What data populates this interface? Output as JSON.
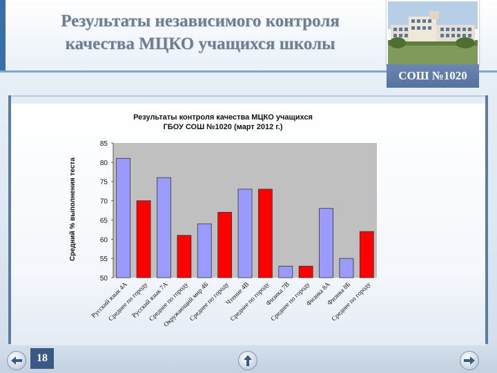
{
  "slide": {
    "title_line1": "Результаты независимого контроля",
    "title_line2": "качества МЦКО учащихся школы",
    "school_badge": "СОШ №1020",
    "page_number": "18"
  },
  "colors": {
    "school_bar": "#9a9aff",
    "city_bar": "#ff0000",
    "plot_bg": "#c0c0c0",
    "accent": "#3a6ea8"
  },
  "icons": {
    "prev": "arrow-left-icon",
    "home": "arrow-up-icon",
    "next": "arrow-right-icon"
  },
  "chart_data": {
    "type": "bar",
    "title": "Результаты контроля качества МЦКО учащихся ГБОУ СОШ №1020 (март 2012 г.)",
    "title_lines": [
      "Результаты контроля качества МЦКО учащихся",
      "ГБОУ СОШ №1020 (март 2012 г.)"
    ],
    "xlabel": "",
    "ylabel": "Средний % выполнения теста",
    "ylim": [
      50,
      85
    ],
    "yticks": [
      50,
      55,
      60,
      65,
      70,
      75,
      80,
      85
    ],
    "grid": false,
    "legend": "none",
    "categories": [
      "Русский язык 4А",
      "Среднее по городу",
      "Русский язык 7А",
      "Среднее по городу",
      "Окружающий мир 4Б",
      "Среднее по городу",
      "Чтение 4В",
      "Среднее по городу",
      "Физика 7В",
      "Среднее по городу",
      "Физика 8А",
      "Физика 8Б",
      "Среднее по городу"
    ],
    "values": [
      81,
      70,
      76,
      61,
      64,
      67,
      73,
      73,
      53,
      53,
      68,
      55,
      62
    ],
    "bar_kind": [
      "school",
      "city",
      "school",
      "city",
      "school",
      "city",
      "school",
      "city",
      "school",
      "city",
      "school",
      "school",
      "city"
    ]
  }
}
